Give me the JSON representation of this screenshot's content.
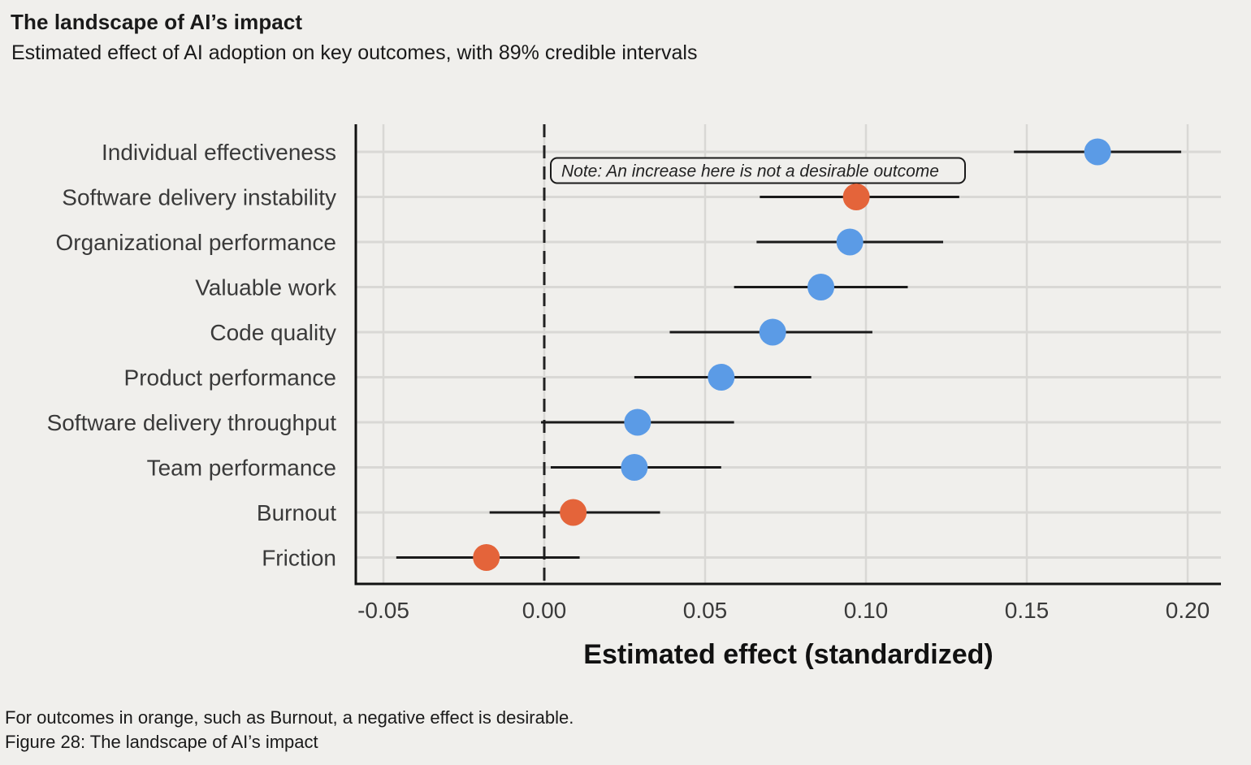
{
  "header": {
    "title": "The landscape of AI’s impact",
    "subtitle": "Estimated effect of AI adoption on key outcomes, with 89% credible intervals"
  },
  "footer": {
    "footnote": "For outcomes in orange, such as Burnout, a negative effect is desirable.",
    "caption": "Figure 28: The landscape of AI’s impact"
  },
  "colors": {
    "positive": "#5b9be6",
    "negative": "#e4643a",
    "interval": "#1a1a1a",
    "grid": "#d9d8d5"
  },
  "chart_data": {
    "type": "scatter",
    "subtype": "dot-and-interval",
    "title": "The landscape of AI’s impact",
    "xlabel": "Estimated effect (standardized)",
    "ylabel": "",
    "xlim": [
      -0.058,
      0.21
    ],
    "xticks": [
      -0.05,
      0.0,
      0.05,
      0.1,
      0.15,
      0.2
    ],
    "xtick_labels": [
      "-0.05",
      "0.00",
      "0.05",
      "0.10",
      "0.15",
      "0.20"
    ],
    "reference_line": 0.0,
    "grid": true,
    "annotation": {
      "text": "Note: An increase here is not a desirable outcome",
      "target": "Software delivery instability"
    },
    "series": [
      {
        "name": "Individual effectiveness",
        "estimate": 0.172,
        "low": 0.146,
        "high": 0.198,
        "group": "positive"
      },
      {
        "name": "Software delivery instability",
        "estimate": 0.097,
        "low": 0.067,
        "high": 0.129,
        "group": "negative"
      },
      {
        "name": "Organizational performance",
        "estimate": 0.095,
        "low": 0.066,
        "high": 0.124,
        "group": "positive"
      },
      {
        "name": "Valuable work",
        "estimate": 0.086,
        "low": 0.059,
        "high": 0.113,
        "group": "positive"
      },
      {
        "name": "Code quality",
        "estimate": 0.071,
        "low": 0.039,
        "high": 0.102,
        "group": "positive"
      },
      {
        "name": "Product performance",
        "estimate": 0.055,
        "low": 0.028,
        "high": 0.083,
        "group": "positive"
      },
      {
        "name": "Software delivery throughput",
        "estimate": 0.029,
        "low": -0.001,
        "high": 0.059,
        "group": "positive"
      },
      {
        "name": "Team performance",
        "estimate": 0.028,
        "low": 0.002,
        "high": 0.055,
        "group": "positive"
      },
      {
        "name": "Burnout",
        "estimate": 0.009,
        "low": -0.017,
        "high": 0.036,
        "group": "negative"
      },
      {
        "name": "Friction",
        "estimate": -0.018,
        "low": -0.046,
        "high": 0.011,
        "group": "negative"
      }
    ]
  }
}
